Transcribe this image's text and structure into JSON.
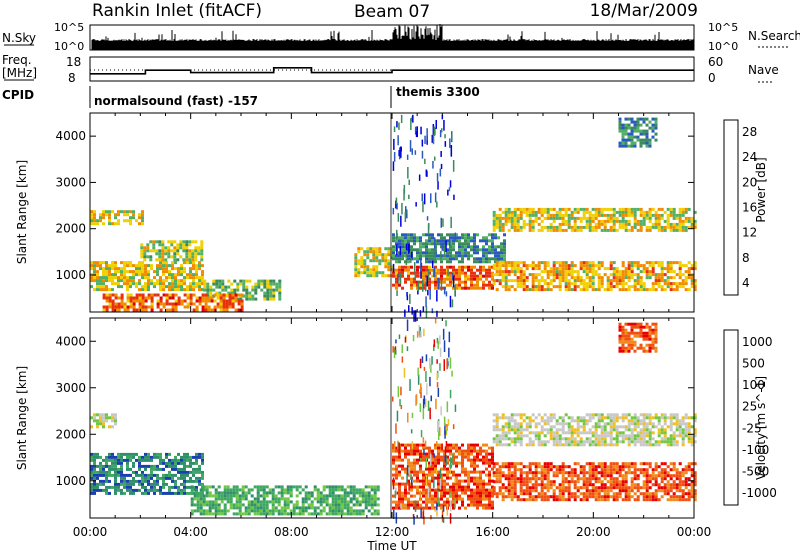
{
  "header": {
    "station": "Rankin Inlet (fitACF)",
    "beam": "Beam 07",
    "date": "18/Mar/2009"
  },
  "sky_panel": {
    "left_label": "N.Sky",
    "right_label": "N.Search",
    "left_ticks": [
      "10^5",
      "10^0"
    ],
    "right_ticks": [
      "10^5",
      "10^0"
    ]
  },
  "freq_panel": {
    "left_label_1": "Freq.",
    "left_label_2": "[MHz]",
    "right_label": "Nave",
    "left_ticks": [
      "18",
      "8"
    ],
    "right_ticks": [
      "60",
      "0"
    ]
  },
  "cpid_panel": {
    "label": "CPID",
    "segments": [
      {
        "start_hour": 0,
        "text": "normalsound (fast) -157"
      },
      {
        "start_hour": 12,
        "text": "themis 3300"
      }
    ]
  },
  "chart_data": [
    {
      "type": "heatmap",
      "name": "power",
      "ylabel": "Slant Range [km]",
      "xlim": [
        0,
        24
      ],
      "ylim": [
        200,
        4500
      ],
      "yticks": [
        "1000",
        "2000",
        "3000",
        "4000"
      ],
      "colorbar_label": "Power [dB]",
      "colorbar_ticks": [
        "28",
        "24",
        "20",
        "16",
        "12",
        "8",
        "4"
      ],
      "colorbar_colors": [
        "#0000dd",
        "#2a5ac0",
        "#3a8a5a",
        "#52b064",
        "#f0d000",
        "#f08c00",
        "#e83010",
        "#dd0000"
      ],
      "echo_regions": [
        {
          "t0": 0.0,
          "t1": 4.5,
          "r0": 700,
          "r1": 1300,
          "level": 18
        },
        {
          "t0": 4.5,
          "t1": 7.5,
          "r0": 500,
          "r1": 900,
          "level": 14
        },
        {
          "t0": 0.5,
          "t1": 6.0,
          "r0": 250,
          "r1": 600,
          "level": 24
        },
        {
          "t0": 0.0,
          "t1": 2.1,
          "r0": 2100,
          "r1": 2400,
          "level": 18
        },
        {
          "t0": 2.0,
          "t1": 4.5,
          "r0": 1300,
          "r1": 1750,
          "level": 16
        },
        {
          "t0": 10.5,
          "t1": 12.0,
          "r0": 1000,
          "r1": 1600,
          "level": 18
        },
        {
          "t0": 12.0,
          "t1": 16.0,
          "r0": 700,
          "r1": 1200,
          "level": 24
        },
        {
          "t0": 12.0,
          "t1": 16.5,
          "r0": 1300,
          "r1": 1900,
          "level": 10
        },
        {
          "t0": 16.0,
          "t1": 24.0,
          "r0": 700,
          "r1": 1300,
          "level": 20
        },
        {
          "t0": 16.0,
          "t1": 24.0,
          "r0": 1950,
          "r1": 2450,
          "level": 18
        },
        {
          "t0": 21.0,
          "t1": 22.5,
          "r0": 3800,
          "r1": 4400,
          "level": 10
        }
      ]
    },
    {
      "type": "heatmap",
      "name": "velocity",
      "ylabel": "Slant Range [km]",
      "xlabel": "Time UT",
      "xlim": [
        0,
        24
      ],
      "ylim": [
        200,
        4500
      ],
      "xticks": [
        "00:00",
        "04:00",
        "08:00",
        "12:00",
        "16:00",
        "20:00",
        "00:00"
      ],
      "yticks": [
        "1000",
        "2000",
        "3000",
        "4000"
      ],
      "colorbar_label": "Velocity [m s^-1]",
      "colorbar_ticks": [
        "1000",
        "500",
        "100",
        "25",
        "-25",
        "-100",
        "-500",
        "-1000"
      ],
      "colorbar_colors": [
        "#1a3fb0",
        "#2f8f6a",
        "#3fa860",
        "#70c840",
        "#c8c8c8",
        "#f0c020",
        "#f08a1a",
        "#f05010",
        "#e80000"
      ],
      "echo_regions": [
        {
          "t0": 0.0,
          "t1": 4.5,
          "r0": 700,
          "r1": 1600,
          "level": 500
        },
        {
          "t0": 0.0,
          "t1": 1.0,
          "r0": 2150,
          "r1": 2450,
          "level": 0
        },
        {
          "t0": 4.0,
          "t1": 11.5,
          "r0": 300,
          "r1": 900,
          "level": 100
        },
        {
          "t0": 12.0,
          "t1": 16.0,
          "r0": 400,
          "r1": 1800,
          "level": -500
        },
        {
          "t0": 16.0,
          "t1": 24.0,
          "r0": 600,
          "r1": 1400,
          "level": -500
        },
        {
          "t0": 16.0,
          "t1": 24.0,
          "r0": 1800,
          "r1": 2450,
          "level": 0
        },
        {
          "t0": 21.0,
          "t1": 22.5,
          "r0": 3800,
          "r1": 4400,
          "level": -500
        }
      ]
    }
  ]
}
